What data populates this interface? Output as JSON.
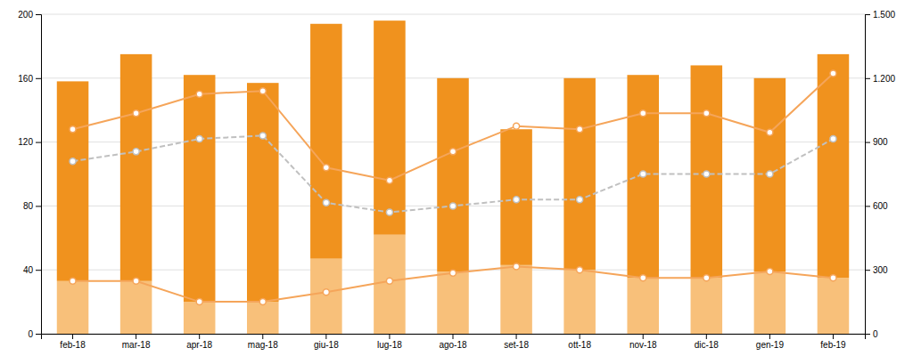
{
  "chart_data": {
    "type": "bar",
    "stacked": true,
    "grid": true,
    "categories": [
      "feb-18",
      "mar-18",
      "apr-18",
      "mag-18",
      "giu-18",
      "lug-18",
      "ago-18",
      "set-18",
      "ott-18",
      "nov-18",
      "dic-18",
      "gen-19",
      "feb-19"
    ],
    "series": [
      {
        "type": "bar",
        "color": "#f8c07a",
        "values": [
          33,
          33,
          20,
          20,
          47,
          62,
          39,
          43,
          40,
          35,
          35,
          39,
          35
        ]
      },
      {
        "type": "bar",
        "color": "#f0921e",
        "values": [
          125,
          142,
          142,
          137,
          147,
          134,
          121,
          85,
          120,
          127,
          133,
          121,
          140
        ]
      },
      {
        "type": "line",
        "color": "#f5a55a",
        "marker": "circle",
        "line_style": "solid",
        "values": [
          128,
          138,
          150,
          152,
          104,
          96,
          114,
          130,
          128,
          138,
          138,
          126,
          163
        ]
      },
      {
        "type": "line",
        "color": "#c0c0c0",
        "marker": "circle",
        "line_style": "dashed",
        "values": [
          108,
          114,
          122,
          124,
          82,
          76,
          80,
          84,
          84,
          100,
          100,
          100,
          122
        ]
      },
      {
        "type": "line",
        "color": "#f5a55a",
        "marker": "circle",
        "line_style": "solid",
        "values": [
          33,
          33,
          20,
          20,
          26,
          33,
          38,
          42,
          40,
          35,
          35,
          39,
          35
        ]
      }
    ],
    "ylim": [
      0,
      200
    ],
    "yticks": [
      0,
      40,
      80,
      120,
      160,
      200
    ],
    "y2lim": [
      0,
      1500
    ],
    "y2ticks": [
      0,
      300,
      600,
      900,
      {
        "value": 1200,
        "label": "1.200"
      },
      {
        "value": 1500,
        "label": "1.500"
      }
    ]
  }
}
